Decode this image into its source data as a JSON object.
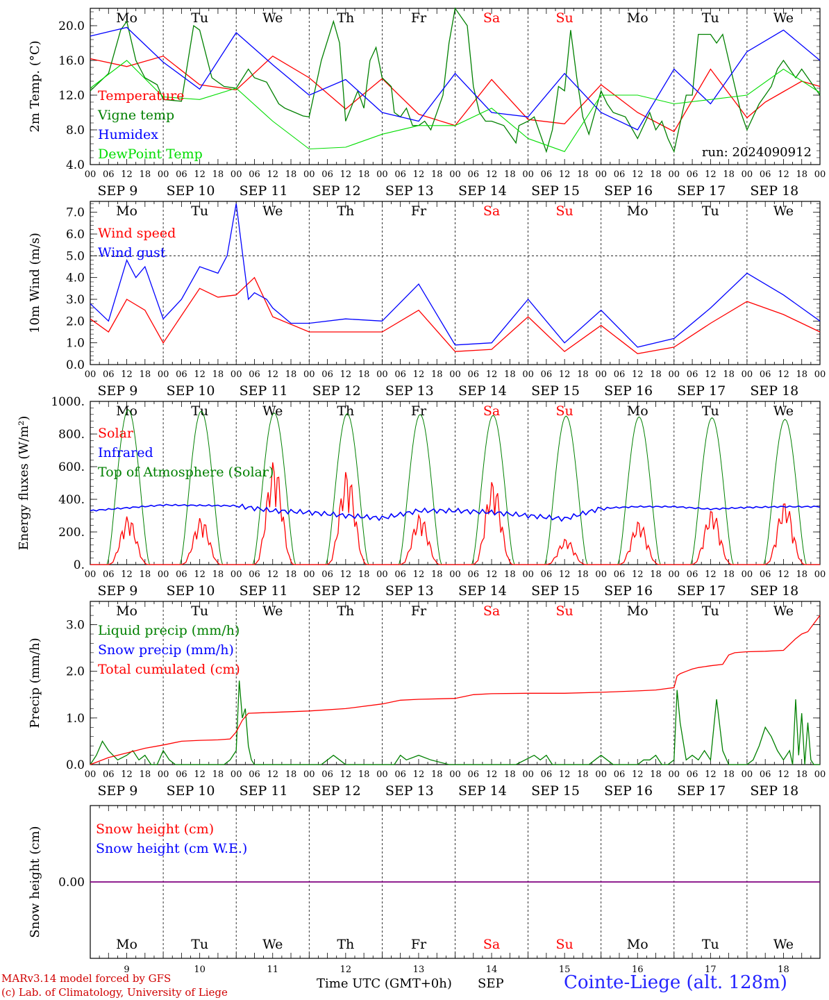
{
  "chart_data": [
    {
      "type": "line",
      "ylabel": "2m Temp. (°C)",
      "ylim": [
        4,
        22
      ],
      "yticks": [
        "4.0",
        "8.0",
        "12.0",
        "16.0",
        "20.0"
      ],
      "ytick_values": [
        4,
        8,
        12,
        16,
        20
      ],
      "note": "run: 2024090912",
      "day_names": [
        "Mo",
        "Tu",
        "We",
        "Th",
        "Fr",
        "Sa",
        "Su",
        "Mo",
        "Tu",
        "We"
      ],
      "hour_labels": [
        "00",
        "06",
        "12",
        "18"
      ],
      "date_labels": [
        "SEP  9",
        "SEP 10",
        "SEP 11",
        "SEP 12",
        "SEP 13",
        "SEP 14",
        "SEP 15",
        "SEP 16",
        "SEP 17",
        "SEP 18"
      ],
      "series": [
        {
          "name": "Temperature",
          "color": "#ff0000",
          "x": [
            0,
            12,
            24,
            36,
            48,
            60,
            72,
            84,
            96,
            108,
            120,
            132,
            144,
            156,
            168,
            180,
            192,
            204,
            216,
            222,
            228,
            234,
            240
          ],
          "values": [
            16.2,
            15.3,
            16.5,
            13.2,
            12.6,
            16.5,
            14.0,
            10.4,
            13.9,
            9.8,
            8.5,
            13.8,
            9.2,
            8.7,
            13.2,
            10.0,
            7.8,
            15.0,
            9.4,
            11.2,
            12.4,
            13.6,
            13.0
          ]
        },
        {
          "name": "Vigne temp",
          "color": "#008000",
          "x": [
            0,
            6,
            10,
            12,
            15,
            18,
            22,
            24,
            30,
            34,
            36,
            40,
            44,
            48,
            52,
            54,
            58,
            62,
            64,
            66,
            70,
            72,
            76,
            80,
            82,
            84,
            88,
            90,
            92,
            94,
            96,
            99,
            100,
            102,
            104,
            106,
            108,
            110,
            112,
            116,
            118,
            120,
            124,
            126,
            128,
            130,
            132,
            136,
            138,
            140,
            141,
            144,
            146,
            150,
            152,
            154,
            156,
            158,
            160,
            162,
            164,
            166,
            168,
            170,
            172,
            176,
            180,
            184,
            186,
            188,
            190,
            192,
            196,
            198,
            200,
            204,
            206,
            208,
            210,
            212,
            214,
            216,
            220,
            222,
            224,
            226,
            228,
            232,
            234,
            238,
            240
          ],
          "values": [
            12.5,
            14.5,
            19.5,
            20.5,
            16.0,
            14.0,
            13.2,
            11.5,
            11.3,
            20.0,
            19.5,
            14.0,
            13.0,
            12.8,
            15.0,
            14.0,
            13.5,
            11.0,
            10.5,
            10.2,
            9.6,
            9.5,
            16.0,
            20.5,
            18.0,
            9.0,
            12.5,
            10.5,
            16.0,
            17.5,
            14.0,
            13.0,
            10.0,
            9.5,
            10.5,
            8.5,
            8.5,
            9.0,
            8.0,
            12.0,
            18.0,
            22.0,
            20.0,
            13.0,
            10.0,
            9.0,
            9.0,
            8.5,
            7.5,
            6.5,
            8.5,
            9.0,
            9.5,
            5.5,
            8.0,
            13.0,
            12.5,
            19.5,
            14.0,
            9.5,
            7.5,
            10.0,
            12.5,
            11.0,
            10.0,
            9.5,
            7.0,
            10.0,
            8.0,
            9.0,
            7.0,
            5.5,
            12.0,
            12.0,
            19.0,
            19.0,
            18.0,
            19.0,
            16.0,
            13.0,
            10.0,
            8.0,
            11.0,
            12.0,
            13.0,
            15.0,
            16.0,
            14.0,
            15.0,
            13.0,
            12.0
          ]
        },
        {
          "name": "Humidex",
          "color": "#0000ff",
          "x": [
            0,
            12,
            24,
            36,
            48,
            60,
            72,
            84,
            96,
            108,
            120,
            132,
            144,
            156,
            168,
            180,
            192,
            204,
            216,
            228,
            240
          ],
          "values": [
            18.8,
            19.8,
            15.8,
            12.7,
            19.2,
            15.5,
            12.0,
            13.8,
            10.0,
            9.0,
            14.5,
            10.0,
            9.5,
            14.5,
            10.0,
            8.0,
            15.0,
            11.0,
            17.0,
            19.5,
            16.0
          ]
        },
        {
          "name": "DewPoint Temp",
          "color": "#00dd00",
          "x": [
            0,
            12,
            24,
            36,
            48,
            60,
            72,
            84,
            96,
            108,
            120,
            132,
            144,
            156,
            168,
            180,
            192,
            204,
            216,
            228,
            240
          ],
          "values": [
            12.8,
            16.0,
            11.8,
            11.5,
            12.8,
            9.0,
            5.8,
            6.0,
            7.5,
            8.5,
            8.5,
            10.5,
            7.0,
            5.5,
            12.0,
            12.0,
            11.0,
            11.5,
            12.0,
            15.0,
            12.3
          ]
        }
      ]
    },
    {
      "type": "line",
      "ylabel": "10m Wind (m/s)",
      "ylim": [
        0,
        7.5
      ],
      "yticks": [
        "0.0",
        "1.0",
        "2.0",
        "3.0",
        "4.0",
        "5.0",
        "6.0",
        "7.0"
      ],
      "ytick_values": [
        0,
        1,
        2,
        3,
        4,
        5,
        6,
        7
      ],
      "reference_line": 5.0,
      "day_names": [
        "Mo",
        "Tu",
        "We",
        "Th",
        "Fr",
        "Sa",
        "Su",
        "Mo",
        "Tu",
        "We"
      ],
      "hour_labels": [
        "00",
        "06",
        "12",
        "18"
      ],
      "date_labels": [
        "SEP  9",
        "SEP 10",
        "SEP 11",
        "SEP 12",
        "SEP 13",
        "SEP 14",
        "SEP 15",
        "SEP 16",
        "SEP 17",
        "SEP 18"
      ],
      "series": [
        {
          "name": "Wind speed",
          "color": "#ff0000",
          "x": [
            0,
            6,
            12,
            18,
            24,
            36,
            42,
            48,
            54,
            60,
            72,
            84,
            96,
            108,
            120,
            132,
            144,
            156,
            168,
            180,
            192,
            204,
            216,
            228,
            240
          ],
          "values": [
            2.1,
            1.5,
            3.0,
            2.5,
            1.0,
            3.5,
            3.1,
            3.2,
            4.0,
            2.2,
            1.5,
            1.5,
            1.5,
            2.5,
            0.6,
            0.7,
            2.2,
            0.6,
            1.8,
            0.5,
            0.8,
            1.9,
            2.9,
            2.3,
            1.5
          ]
        },
        {
          "name": "Wind gust",
          "color": "#0000ff",
          "x": [
            0,
            6,
            12,
            15,
            18,
            24,
            30,
            36,
            42,
            45,
            48,
            52,
            54,
            58,
            60,
            66,
            72,
            84,
            96,
            108,
            120,
            132,
            144,
            156,
            168,
            180,
            192,
            204,
            216,
            228,
            240
          ],
          "values": [
            2.8,
            2.0,
            4.8,
            4.0,
            4.5,
            2.1,
            3.0,
            4.5,
            4.2,
            5.0,
            7.4,
            3.0,
            3.3,
            3.0,
            2.6,
            1.9,
            1.9,
            2.1,
            2.0,
            3.7,
            0.9,
            1.0,
            3.0,
            1.0,
            2.5,
            0.8,
            1.2,
            2.6,
            4.2,
            3.2,
            2.0
          ]
        }
      ]
    },
    {
      "type": "line",
      "ylabel": "Energy fluxes (W/m²)",
      "ylim": [
        0,
        1000
      ],
      "yticks": [
        "0.",
        "200.",
        "400.",
        "600.",
        "800.",
        "1000."
      ],
      "ytick_values": [
        0,
        200,
        400,
        600,
        800,
        1000
      ],
      "day_names": [
        "Mo",
        "Tu",
        "We",
        "Th",
        "Fr",
        "Sa",
        "Su",
        "Mo",
        "Tu",
        "We"
      ],
      "hour_labels": [
        "00",
        "06",
        "12",
        "18"
      ],
      "date_labels": [
        "SEP  9",
        "SEP 10",
        "SEP 11",
        "SEP 12",
        "SEP 13",
        "SEP 14",
        "SEP 15",
        "SEP 16",
        "SEP 17",
        "SEP 18"
      ],
      "solar_peaks": [
        300,
        290,
        640,
        580,
        310,
        520,
        160,
        270,
        340,
        390
      ],
      "toa_peaks": [
        950,
        940,
        930,
        925,
        920,
        915,
        910,
        905,
        900,
        890
      ],
      "series": [
        {
          "name": "Solar",
          "color": "#ff0000",
          "values": []
        },
        {
          "name": "Infrared",
          "color": "#0000ff",
          "x": [
            0,
            24,
            48,
            60,
            72,
            84,
            96,
            108,
            120,
            132,
            144,
            156,
            168,
            180,
            192,
            204,
            216,
            228,
            240
          ],
          "values": [
            330,
            365,
            360,
            330,
            320,
            300,
            285,
            330,
            330,
            320,
            300,
            280,
            345,
            355,
            355,
            340,
            350,
            355,
            355
          ]
        },
        {
          "name": "Top of Atmosphere (Solar)",
          "color": "#008000",
          "values": []
        }
      ]
    },
    {
      "type": "line",
      "ylabel": "Precip (mm/h)",
      "ylim": [
        0,
        3.5
      ],
      "yticks": [
        "0.0",
        "1.0",
        "2.0",
        "3.0"
      ],
      "ytick_values": [
        0,
        1,
        2,
        3
      ],
      "day_names": [
        "Mo",
        "Tu",
        "We",
        "Th",
        "Fr",
        "Sa",
        "Su",
        "Mo",
        "Tu",
        "We"
      ],
      "hour_labels": [
        "00",
        "06",
        "12",
        "18"
      ],
      "date_labels": [
        "SEP  9",
        "SEP 10",
        "SEP 11",
        "SEP 12",
        "SEP 13",
        "SEP 14",
        "SEP 15",
        "SEP 16",
        "SEP 17",
        "SEP 18"
      ],
      "series": [
        {
          "name": "Liquid precip (mm/h)",
          "color": "#008000",
          "x": [
            0,
            2,
            4,
            6,
            9,
            12,
            14,
            16,
            18,
            20,
            22,
            24,
            26,
            28,
            30,
            44,
            46,
            48,
            49,
            50,
            51,
            52,
            53,
            54,
            56,
            58,
            60,
            66,
            72,
            76,
            78,
            80,
            82,
            84,
            100,
            102,
            104,
            108,
            112,
            118,
            120,
            140,
            146,
            148,
            150,
            152,
            156,
            160,
            164,
            166,
            168,
            170,
            172,
            174,
            176,
            180,
            182,
            184,
            186,
            188,
            190,
            192,
            193,
            194,
            196,
            198,
            200,
            202,
            204,
            206,
            208,
            210,
            216,
            218,
            220,
            222,
            224,
            226,
            228,
            230,
            231,
            232,
            233,
            234,
            235,
            236,
            237,
            238,
            240
          ],
          "values": [
            0,
            0.2,
            0.5,
            0.3,
            0.1,
            0.2,
            0.3,
            0.1,
            0.2,
            0,
            0,
            0.3,
            0.1,
            0,
            0,
            0,
            0.1,
            0.3,
            1.8,
            1.0,
            1.2,
            0.4,
            0.1,
            0,
            0,
            0,
            0,
            0,
            0,
            0,
            0.1,
            0.2,
            0.1,
            0,
            0,
            0.2,
            0.1,
            0.2,
            0.1,
            0,
            0,
            0,
            0.2,
            0.1,
            0.2,
            0,
            0,
            0,
            0,
            0.1,
            0.2,
            0.1,
            0,
            0,
            0,
            0,
            0.1,
            0.1,
            0.2,
            0,
            0,
            0.1,
            1.6,
            0.9,
            0.1,
            0.2,
            0.1,
            0.3,
            0.1,
            1.4,
            0.3,
            0,
            0,
            0.1,
            0.4,
            0.8,
            0.6,
            0.3,
            0.1,
            0.3,
            0,
            1.4,
            0.2,
            1.1,
            0,
            0.9,
            0.1,
            0,
            0
          ]
        },
        {
          "name": "Snow precip (mm/h)",
          "color": "#0000ff",
          "values": []
        },
        {
          "name": "Total cumulated (cm)",
          "color": "#ff0000",
          "x": [
            0,
            6,
            12,
            18,
            24,
            30,
            36,
            42,
            46,
            48,
            50,
            52,
            60,
            72,
            84,
            96,
            102,
            108,
            120,
            126,
            132,
            144,
            156,
            168,
            180,
            186,
            192,
            193,
            194,
            196,
            198,
            200,
            204,
            208,
            210,
            212,
            216,
            222,
            228,
            232,
            234,
            236,
            240
          ],
          "values": [
            0,
            0.15,
            0.25,
            0.35,
            0.42,
            0.5,
            0.52,
            0.53,
            0.55,
            0.7,
            0.95,
            1.1,
            1.12,
            1.15,
            1.2,
            1.3,
            1.38,
            1.4,
            1.42,
            1.5,
            1.52,
            1.53,
            1.53,
            1.55,
            1.58,
            1.6,
            1.65,
            1.9,
            1.95,
            2.0,
            2.05,
            2.08,
            2.12,
            2.15,
            2.35,
            2.4,
            2.42,
            2.43,
            2.45,
            2.7,
            2.8,
            2.85,
            3.2
          ]
        }
      ]
    },
    {
      "type": "line",
      "ylabel": "Snow height (cm)",
      "ylim": [
        -1,
        1
      ],
      "yticks": [
        "0.00"
      ],
      "ytick_values": [
        0
      ],
      "day_names": [
        "Mo",
        "Tu",
        "We",
        "Th",
        "Fr",
        "Sa",
        "Su",
        "Mo",
        "Tu",
        "We"
      ],
      "date_numbers": [
        "9",
        "10",
        "11",
        "12",
        "13",
        "14",
        "15",
        "16",
        "17",
        "18"
      ],
      "series": [
        {
          "name": "Snow height (cm)",
          "color": "#ff0000",
          "x": [
            0,
            240
          ],
          "values": [
            0,
            0
          ]
        },
        {
          "name": "Snow height (cm W.E.)",
          "color": "#0000ff",
          "x": [
            0,
            240
          ],
          "values": [
            0,
            0
          ]
        }
      ]
    }
  ],
  "footer": {
    "credit_line1": "MARv3.14 model forced by GFS",
    "credit_line2": "(c) Lab. of Climatology, University of Liege",
    "xaxis_title": "Time UTC (GMT+0h)",
    "xaxis_month": "SEP",
    "station": "Cointe-Liege (alt. 128m)"
  },
  "colors": {
    "weekday": "#000000",
    "weekend": "#ff0000",
    "line_snow": "#800080"
  }
}
